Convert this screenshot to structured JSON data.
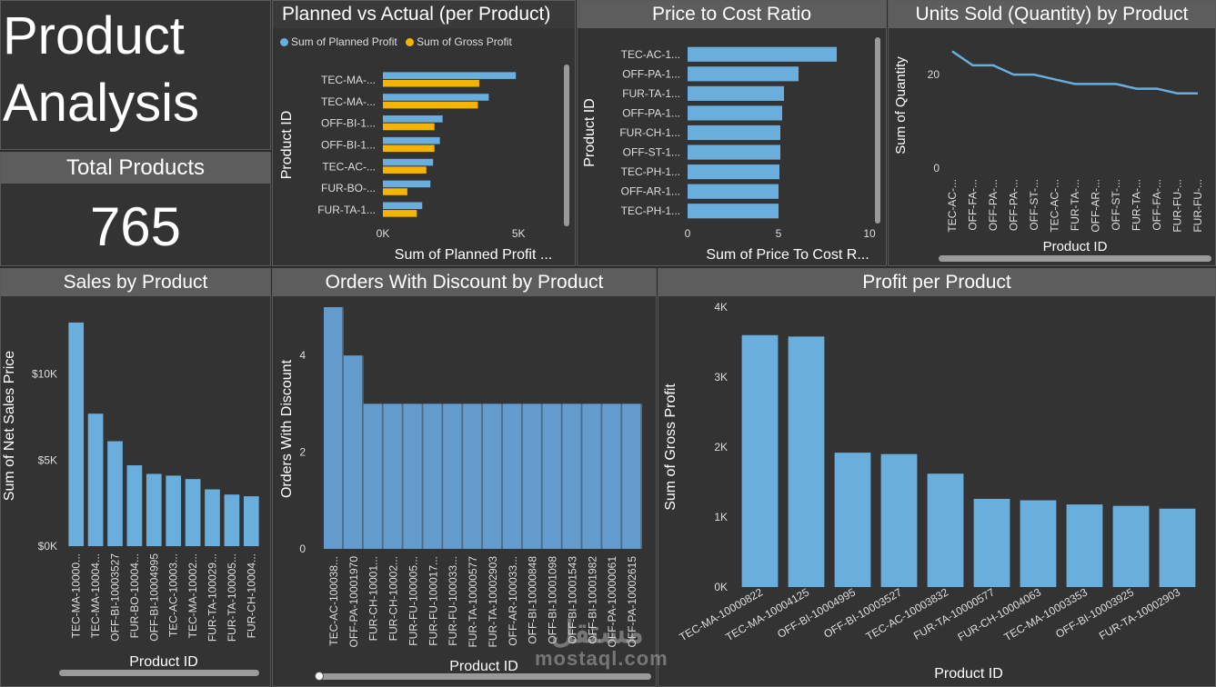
{
  "header": {
    "title_line1": "Product",
    "title_line2": "Analysis"
  },
  "kpi": {
    "label": "Total Products",
    "value": "765"
  },
  "colors": {
    "blue": "#6aaedd",
    "orange": "#f5b400",
    "panel": "#333333",
    "title_bar": "#5d5d5d",
    "text": "#dddddd"
  },
  "watermark": {
    "line1": "مستقل",
    "line2": "mostaql.com"
  },
  "chart_data": [
    {
      "id": "planned_vs_actual",
      "type": "bar",
      "orientation": "horizontal",
      "title": "Planned vs Actual (per Product)",
      "xlabel": "Sum of Planned Profit ...",
      "ylabel": "Product ID",
      "xlim": [
        0,
        6000
      ],
      "xticks": [
        {
          "v": 0,
          "label": "0K"
        },
        {
          "v": 5000,
          "label": "5K"
        }
      ],
      "categories": [
        "TEC-MA-...",
        "TEC-MA-...",
        "OFF-BI-1...",
        "OFF-BI-1...",
        "TEC-AC-...",
        "FUR-BO-...",
        "FUR-TA-1..."
      ],
      "series": [
        {
          "name": "Sum of Planned Profit",
          "color": "#6aaedd",
          "values": [
            4900,
            3900,
            2200,
            2100,
            1850,
            1750,
            1450
          ]
        },
        {
          "name": "Sum of Gross Profit",
          "color": "#f5b400",
          "values": [
            3550,
            3500,
            1900,
            1900,
            1600,
            900,
            1250
          ]
        }
      ]
    },
    {
      "id": "price_to_cost",
      "type": "bar",
      "orientation": "horizontal",
      "title": "Price to Cost Ratio",
      "xlabel": "Sum of Price To Cost R...",
      "ylabel": "Product ID",
      "xlim": [
        0,
        10
      ],
      "xticks": [
        {
          "v": 0,
          "label": "0"
        },
        {
          "v": 5,
          "label": "5"
        },
        {
          "v": 10,
          "label": "10"
        }
      ],
      "categories": [
        "TEC-AC-1...",
        "OFF-PA-1...",
        "FUR-TA-1...",
        "OFF-PA-1...",
        "FUR-CH-1...",
        "OFF-ST-1...",
        "TEC-PH-1...",
        "OFF-AR-1...",
        "TEC-PH-1..."
      ],
      "values": [
        8.2,
        6.1,
        5.3,
        5.2,
        5.1,
        5.1,
        5.05,
        5.0,
        5.0
      ]
    },
    {
      "id": "units_sold",
      "type": "line",
      "title": "Units Sold (Quantity) by Product",
      "xlabel": "Product ID",
      "ylabel": "Sum of Quantity",
      "ylim": [
        0,
        28
      ],
      "yticks": [
        {
          "v": 0,
          "label": "0"
        },
        {
          "v": 20,
          "label": "20"
        }
      ],
      "categories": [
        "TEC-AC-...",
        "OFF-FA-...",
        "OFF-PA-...",
        "OFF-PA-...",
        "OFF-ST-...",
        "TEC-AC-...",
        "FUR-TA-...",
        "OFF-AR-...",
        "OFF-ST-...",
        "FUR-TA-...",
        "OFF-FA-...",
        "FUR-FU-...",
        "FUR-FU-..."
      ],
      "values": [
        25,
        22,
        22,
        20,
        20,
        19,
        18,
        18,
        18,
        17,
        17,
        16,
        16
      ]
    },
    {
      "id": "sales_by_product",
      "type": "bar",
      "title": "Sales by Product",
      "xlabel": "Product ID",
      "ylabel": "Sum of Net Sales Price",
      "ylim": [
        0,
        14000
      ],
      "yticks": [
        {
          "v": 0,
          "label": "$0K"
        },
        {
          "v": 5000,
          "label": "$5K"
        },
        {
          "v": 10000,
          "label": "$10K"
        }
      ],
      "categories": [
        "TEC-MA-10000...",
        "TEC-MA-10004...",
        "OFF-BI-10003527",
        "FUR-BO-10004...",
        "OFF-BI-10004995",
        "TEC-AC-10003...",
        "TEC-MA-10002...",
        "FUR-TA-100029...",
        "FUR-TA-100005...",
        "FUR-CH-10004..."
      ],
      "values": [
        13000,
        7700,
        6100,
        4700,
        4200,
        4100,
        3900,
        3300,
        3000,
        2900
      ]
    },
    {
      "id": "orders_with_discount",
      "type": "area",
      "title": "Orders With Discount by Product",
      "xlabel": "Product ID",
      "ylabel": "Orders With Discount",
      "ylim": [
        0,
        5
      ],
      "yticks": [
        {
          "v": 0,
          "label": "0"
        },
        {
          "v": 2,
          "label": "2"
        },
        {
          "v": 4,
          "label": "4"
        }
      ],
      "categories": [
        "TEC-AC-100038...",
        "OFF-PA-10001970",
        "FUR-CH-10001...",
        "FUR-CH-10002...",
        "FUR-FU-100005...",
        "FUR-FU-100017...",
        "FUR-FU-100033...",
        "FUR-TA-10000577",
        "FUR-TA-10002903",
        "OFF-AR-100033...",
        "OFF-BI-10000848",
        "OFF-BI-10001098",
        "OFF-BI-10001543",
        "OFF-BI-10001982",
        "OFF-PA-10000061",
        "OFF-PA-10002615"
      ],
      "values": [
        5,
        4,
        3,
        3,
        3,
        3,
        3,
        3,
        3,
        3,
        3,
        3,
        3,
        3,
        3,
        3
      ]
    },
    {
      "id": "profit_per_product",
      "type": "bar",
      "title": "Profit per Product",
      "xlabel": "Product ID",
      "ylabel": "Sum of Gross Profit",
      "ylim": [
        0,
        4000
      ],
      "yticks": [
        {
          "v": 0,
          "label": "0K"
        },
        {
          "v": 1000,
          "label": "1K"
        },
        {
          "v": 2000,
          "label": "2K"
        },
        {
          "v": 3000,
          "label": "3K"
        },
        {
          "v": 4000,
          "label": "4K"
        }
      ],
      "categories": [
        "TEC-MA-10000822",
        "TEC-MA-10004125",
        "OFF-BI-10004995",
        "OFF-BI-10003527",
        "TEC-AC-10003832",
        "FUR-TA-10000577",
        "FUR-CH-10004063",
        "TEC-MA-10003353",
        "OFF-BI-10003925",
        "FUR-TA-10002903"
      ],
      "values": [
        3600,
        3580,
        1920,
        1900,
        1620,
        1260,
        1240,
        1180,
        1160,
        1120
      ]
    }
  ]
}
